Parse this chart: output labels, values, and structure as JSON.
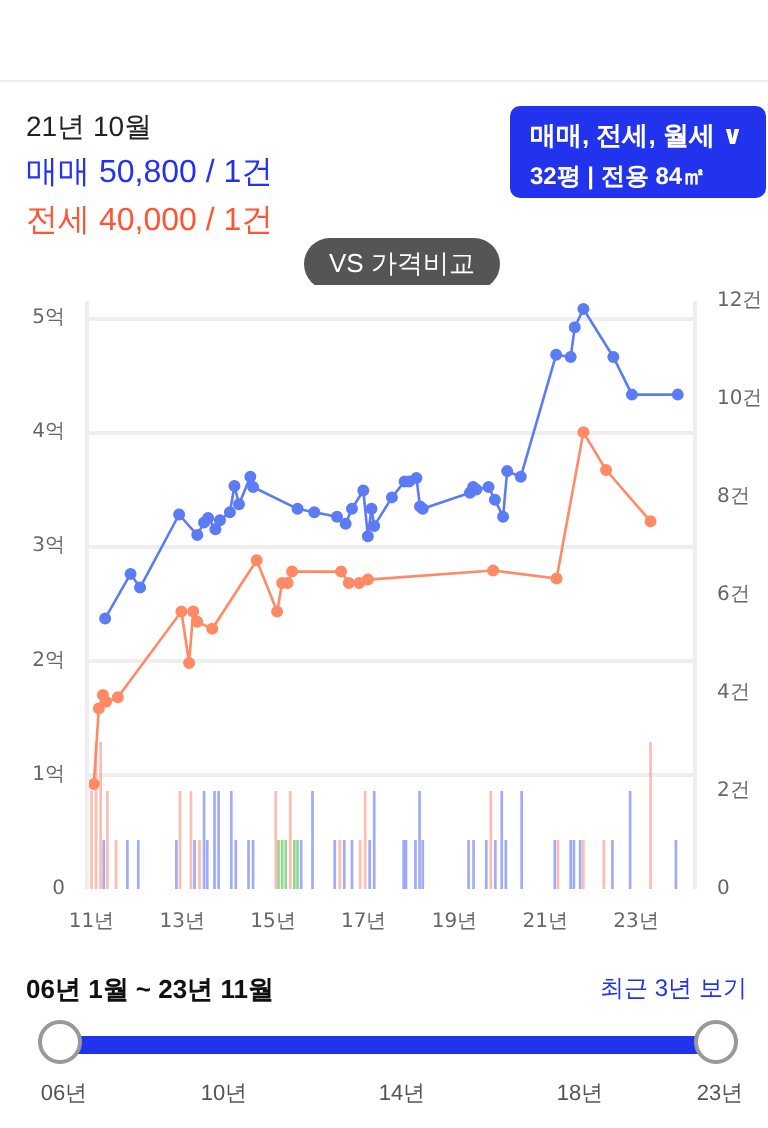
{
  "chart_data": {
    "type": "line",
    "annotations": [
      "21년 10월",
      "매매 50,800 / 1건",
      "전세 40,000 / 1건",
      "매매, 전세, 월세 ∨",
      "32평 | 전용 84㎡",
      "VS 가격비교",
      "06년 1월 ~ 23년 11월",
      "최근 3년 보기",
      "06년",
      "10년",
      "14년",
      "18년",
      "23년"
    ],
    "xlim": [
      10.9,
      24.3
    ],
    "xticks": [
      {
        "value": 11,
        "label": "11년"
      },
      {
        "value": 13,
        "label": "13년"
      },
      {
        "value": 15,
        "label": "15년"
      },
      {
        "value": 17,
        "label": "17년"
      },
      {
        "value": 19,
        "label": "19년"
      },
      {
        "value": 21,
        "label": "21년"
      },
      {
        "value": 23,
        "label": "23년"
      }
    ],
    "ylim": [
      0,
      5.15
    ],
    "yticks": [
      0,
      {
        "value": 1,
        "label": "1억"
      },
      {
        "value": 2,
        "label": "2억"
      },
      {
        "value": 3,
        "label": "3억"
      },
      {
        "value": 4,
        "label": "4억"
      },
      {
        "value": 5,
        "label": "5억"
      }
    ],
    "y2lim": [
      0,
      12
    ],
    "y2ticks": [
      0,
      {
        "value": 2,
        "label": "2건"
      },
      {
        "value": 4,
        "label": "4건"
      },
      {
        "value": 6,
        "label": "6건"
      },
      {
        "value": 8,
        "label": "8건"
      },
      {
        "value": 10,
        "label": "10건"
      },
      {
        "value": 12,
        "label": "12건"
      }
    ],
    "grid": "y",
    "marker": "circle",
    "series": [
      {
        "type": "bar",
        "axis": "y2",
        "color": "#6f80f5",
        "x": [
          11.27,
          11.79,
          12.03,
          12.87,
          13.27,
          13.48,
          13.55,
          13.71,
          13.8,
          14.08,
          14.18,
          14.46,
          14.56,
          15.62,
          15.87,
          16.36,
          16.57,
          16.74,
          17.13,
          17.23,
          17.88,
          17.93,
          18.14,
          18.23,
          18.3,
          19.31,
          19.42,
          19.7,
          19.9,
          20.04,
          20.13,
          20.48,
          21.21,
          21.56,
          21.63,
          21.77,
          22.48,
          22.87,
          23.88
        ],
        "values": [
          1,
          1,
          1,
          1,
          1,
          2,
          1,
          2,
          2,
          2,
          1,
          1,
          1,
          1,
          2,
          1,
          1,
          1,
          1,
          2,
          1,
          1,
          1,
          2,
          1,
          1,
          1,
          1,
          1,
          2,
          1,
          2,
          1,
          1,
          1,
          1,
          1,
          2,
          1
        ]
      },
      {
        "type": "bar",
        "axis": "y2",
        "color": "#ff9a88",
        "x": [
          11.0,
          11.1,
          11.2,
          11.35,
          11.54,
          12.95,
          13.19,
          13.38,
          15.06,
          15.38,
          16.47,
          16.92,
          17.03,
          19.8,
          21.28,
          21.84,
          22.29,
          23.32
        ],
        "values": [
          2,
          3,
          3,
          2,
          1,
          2,
          2,
          1,
          2,
          2,
          1,
          1,
          2,
          2,
          1,
          1,
          1,
          3
        ]
      },
      {
        "type": "bar",
        "axis": "y2",
        "color": "#5cc15c",
        "x": [
          15.12,
          15.2,
          15.28,
          15.47,
          15.54
        ],
        "values": [
          1,
          1,
          1,
          1,
          1
        ]
      },
      {
        "color": "#5b7cf5",
        "x": [
          11.3,
          11.86,
          12.07,
          12.93,
          13.33,
          13.48,
          13.57,
          13.73,
          13.83,
          14.05,
          14.15,
          14.25,
          14.5,
          14.56,
          15.54,
          15.91,
          16.41,
          16.6,
          16.74,
          16.99,
          17.09,
          17.17,
          17.23,
          17.62,
          17.9,
          18.0,
          18.16,
          18.24,
          18.3,
          19.34,
          19.41,
          19.48,
          19.75,
          19.89,
          20.07,
          20.16,
          20.46,
          21.24,
          21.56,
          21.65,
          21.84,
          22.5,
          22.91,
          23.92
        ],
        "values": [
          2.37,
          2.76,
          2.64,
          3.28,
          3.1,
          3.21,
          3.25,
          3.15,
          3.23,
          3.3,
          3.53,
          3.37,
          3.61,
          3.52,
          3.33,
          3.3,
          3.26,
          3.2,
          3.33,
          3.49,
          3.09,
          3.33,
          3.18,
          3.43,
          3.57,
          3.57,
          3.6,
          3.35,
          3.33,
          3.47,
          3.52,
          3.5,
          3.52,
          3.41,
          3.26,
          3.66,
          3.61,
          4.68,
          4.66,
          4.92,
          5.08,
          4.66,
          4.33,
          4.33
        ]
      },
      {
        "color": "#ff8a65",
        "x": [
          11.05,
          11.16,
          11.25,
          11.32,
          11.58,
          12.98,
          13.15,
          13.24,
          13.33,
          13.66,
          14.64,
          15.09,
          15.2,
          15.32,
          15.42,
          16.5,
          16.67,
          16.9,
          17.09,
          19.85,
          21.25,
          21.84,
          22.34,
          23.32
        ],
        "values": [
          0.92,
          1.58,
          1.7,
          1.64,
          1.68,
          2.43,
          1.98,
          2.43,
          2.34,
          2.28,
          2.88,
          2.43,
          2.68,
          2.68,
          2.78,
          2.78,
          2.68,
          2.68,
          2.71,
          2.79,
          2.72,
          4.0,
          3.67,
          3.22
        ]
      }
    ]
  }
}
